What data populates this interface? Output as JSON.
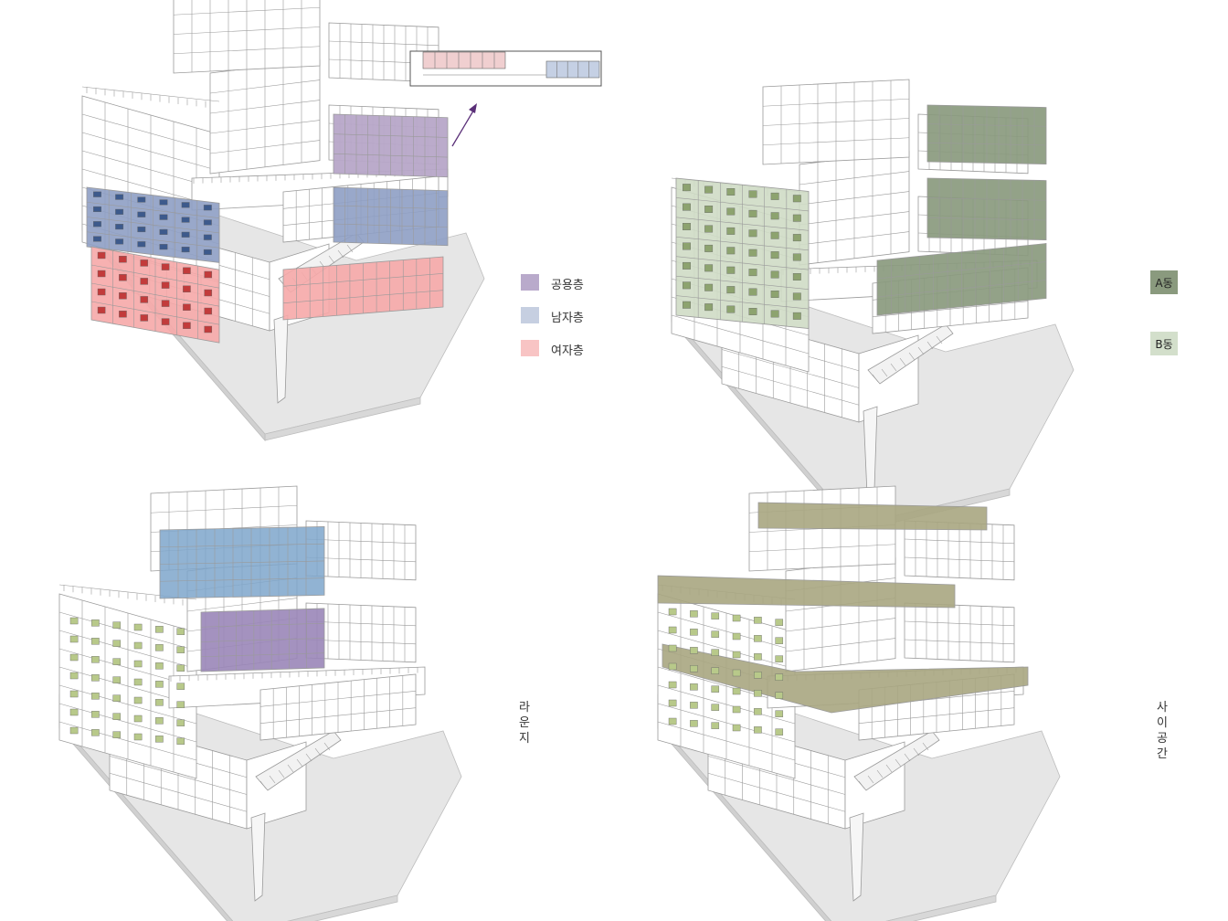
{
  "colors": {
    "shared": "#b7a7c8",
    "male": "#8e9fc4",
    "female": "#f6a9a8",
    "a_dong": "#8a9a7e",
    "b_dong": "#cfdcc5",
    "lounge_blue": "#7ea6cb",
    "lounge_purple": "#9a86b8",
    "between": "#a8a681",
    "plan_pink": "#f0cfd0",
    "plan_blue": "#c5d0e4",
    "arrow": "#5a2f78",
    "line": "#9a9a9a",
    "ground": "#e6e6e6"
  },
  "legend": {
    "items": [
      {
        "label": "공용층",
        "color": "#b9aacb"
      },
      {
        "label": "남자층",
        "color": "#c6cfe1"
      },
      {
        "label": "여자층",
        "color": "#f8c4c4"
      }
    ]
  },
  "dong_tags": {
    "a": {
      "label": "A동",
      "color": "#8a9a7e"
    },
    "b": {
      "label": "B동",
      "color": "#d3dfcb"
    }
  },
  "labels": {
    "lounge": [
      "라",
      "운",
      "지"
    ],
    "between_space": [
      "사",
      "이",
      "공",
      "간"
    ]
  },
  "panels": [
    {
      "id": "p1",
      "name": "floor-use"
    },
    {
      "id": "p2",
      "name": "dong-split"
    },
    {
      "id": "p3",
      "name": "lounge"
    },
    {
      "id": "p4",
      "name": "between-space"
    }
  ]
}
